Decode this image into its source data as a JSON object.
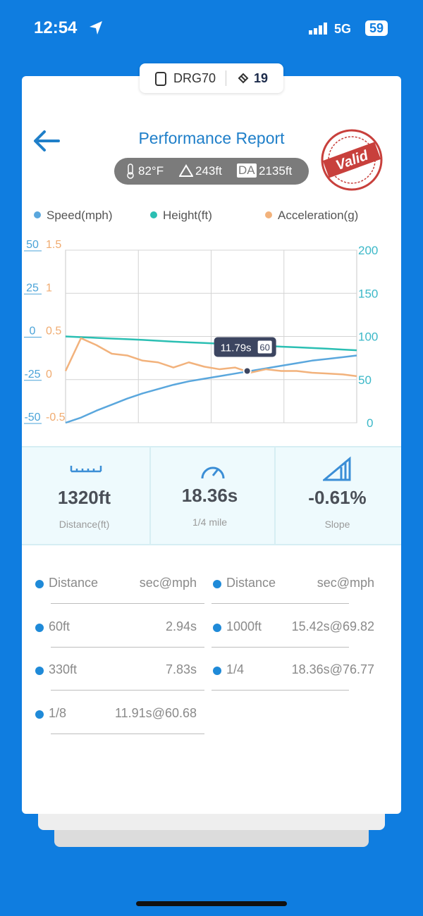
{
  "status_bar": {
    "time": "12:54",
    "network": "5G",
    "battery": "59"
  },
  "device": {
    "name": "DRG70",
    "count": "19"
  },
  "header": {
    "title": "Performance Report",
    "temperature": "82°F",
    "altitude": "243ft",
    "da_label": "DA",
    "density_altitude": "2135ft",
    "stamp": "Valid"
  },
  "chart_data": {
    "type": "line",
    "xlim": [
      0,
      18.9
    ],
    "x": [
      0,
      1,
      2,
      3,
      4,
      5,
      6,
      7,
      8,
      9,
      10,
      11,
      12,
      13,
      14,
      15,
      16,
      17,
      18,
      18.9
    ],
    "ylim": [
      -50,
      50
    ],
    "yticks": [
      -50,
      -25,
      0,
      25,
      50
    ],
    "y2lim": [
      0,
      200
    ],
    "y2ticks": [
      0,
      50,
      100,
      150,
      200
    ],
    "y3lim": [
      -0.5,
      1.5
    ],
    "y3ticks": [
      -0.5,
      0,
      0.5,
      1,
      1.5
    ],
    "grid": true,
    "series": [
      {
        "name": "Speed(mph)",
        "color": "#5aa7dd",
        "axis": "y2",
        "values": [
          0,
          6,
          14,
          21,
          28,
          34,
          39,
          44,
          48,
          51,
          54,
          57,
          60,
          63,
          66,
          69,
          72,
          74,
          76,
          78
        ]
      },
      {
        "name": "Height(ft)",
        "color": "#2bbfb3",
        "axis": "y",
        "values": [
          0,
          -0.4,
          -0.8,
          -1.2,
          -1.6,
          -2,
          -2.5,
          -3,
          -3.4,
          -3.8,
          -4.2,
          -4.6,
          -5,
          -5.4,
          -5.9,
          -6.3,
          -6.7,
          -7.1,
          -7.6,
          -8
        ]
      },
      {
        "name": "Acceleration(g)",
        "color": "#f2b27c",
        "axis": "y3",
        "values": [
          0.1,
          0.48,
          0.4,
          0.3,
          0.28,
          0.22,
          0.2,
          0.14,
          0.2,
          0.15,
          0.12,
          0.14,
          0.08,
          0.12,
          0.1,
          0.1,
          0.08,
          0.07,
          0.06,
          0.04
        ]
      }
    ],
    "tooltip": {
      "x": 11.79,
      "x_label": "11.79s",
      "value": 60
    }
  },
  "stats": [
    {
      "value": "1320ft",
      "label": "Distance(ft)"
    },
    {
      "value": "18.36s",
      "label": "1/4 mile"
    },
    {
      "value": "-0.61%",
      "label": "Slope"
    }
  ],
  "table": {
    "columns": [
      {
        "header": [
          "Distance",
          "sec@mph"
        ],
        "rows": [
          [
            "60ft",
            "2.94s"
          ],
          [
            "330ft",
            "7.83s"
          ],
          [
            "1/8",
            "11.91s@60.68"
          ]
        ]
      },
      {
        "header": [
          "Distance",
          "sec@mph"
        ],
        "rows": [
          [
            "1000ft",
            "15.42s@69.82"
          ],
          [
            "1/4",
            "18.36s@76.77"
          ]
        ]
      }
    ]
  }
}
